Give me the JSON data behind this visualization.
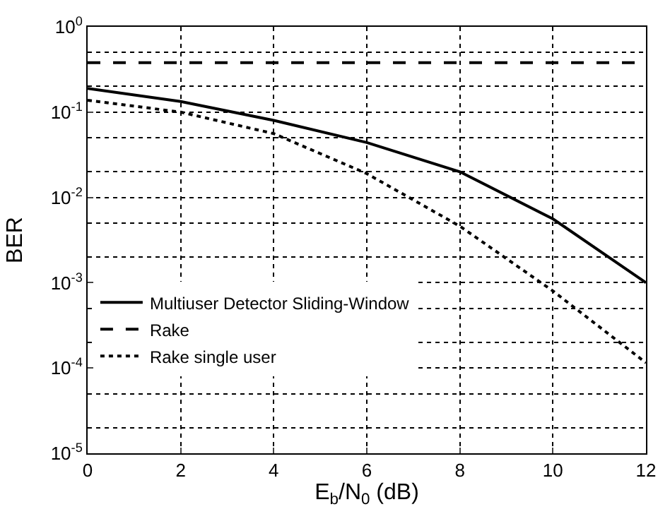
{
  "chart_data": {
    "type": "line",
    "xlabel": "E$_{b}$/N$_{0}$ (dB)",
    "ylabel": "BER",
    "x": [
      0,
      2,
      4,
      6,
      8,
      10,
      12
    ],
    "series": [
      {
        "name": "Multiuser Detector Sliding-Window",
        "color": "#000000",
        "line_style": "solid",
        "values": [
          0.19,
          0.133,
          0.08,
          0.044,
          0.02,
          0.0056,
          0.001
        ]
      },
      {
        "name": "Rake",
        "color": "#000000",
        "line_style": "dashed",
        "values": [
          0.38,
          0.38,
          0.38,
          0.38,
          0.38,
          0.38,
          0.38
        ]
      },
      {
        "name": "Rake single user",
        "color": "#000000",
        "line_style": "dotted",
        "values": [
          0.138,
          0.1,
          0.056,
          0.019,
          0.0046,
          0.0008,
          0.000115
        ]
      }
    ],
    "xlim": [
      0,
      12
    ],
    "xticks": [
      0,
      2,
      4,
      6,
      8,
      10,
      12
    ],
    "ylim": [
      1e-05,
      1
    ],
    "yticks": [
      {
        "value": 1e-05,
        "label": "10$^{-5}$"
      },
      {
        "value": 0.0001,
        "label": "10$^{-4}$"
      },
      {
        "value": 0.001,
        "label": "10$^{-3}$"
      },
      {
        "value": 0.01,
        "label": "10$^{-2}$"
      },
      {
        "value": 0.1,
        "label": "10$^{-1}$"
      },
      {
        "value": 1,
        "label": "10$^{0}$"
      }
    ],
    "log": "y",
    "grid": true,
    "legend": "bottom left",
    "marker": "none"
  }
}
